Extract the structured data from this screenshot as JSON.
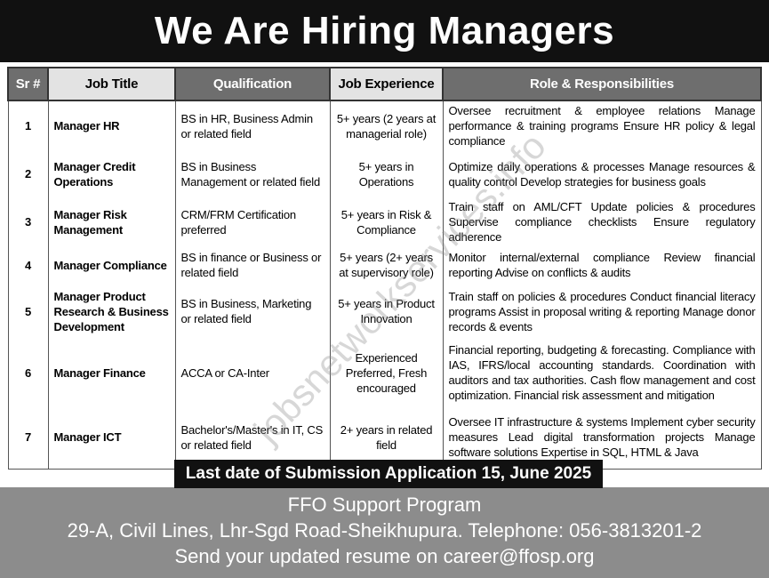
{
  "header": {
    "title": "We Are Hiring Managers"
  },
  "table": {
    "headers": [
      "Sr #",
      "Job Title",
      "Qualification",
      "Job Experience",
      "Role & Responsibilities"
    ],
    "rows": [
      [
        "1",
        "Manager HR",
        "BS in HR, Business Admin or related field",
        "5+ years (2 years at managerial role)",
        "Oversee recruitment & employee relations Manage performance & training programs Ensure HR policy & legal compliance"
      ],
      [
        "2",
        "Manager Credit Operations",
        "BS in Business Management or related field",
        "5+ years in Operations",
        "Optimize daily operations & processes Manage resources & quality control Develop strategies for business goals"
      ],
      [
        "3",
        "Manager Risk Management",
        "CRM/FRM Certification preferred",
        "5+ years in Risk & Compliance",
        "Train staff on AML/CFT Update policies & procedures Supervise compliance checklists Ensure regulatory adherence"
      ],
      [
        "4",
        "Manager Compliance",
        "BS in finance or Business or related field",
        "5+ years (2+ years at supervisory role)",
        "Monitor internal/external compliance Review financial reporting Advise on conflicts & audits"
      ],
      [
        "5",
        "Manager Product Research & Business Development",
        "BS in Business, Marketing or related field",
        "5+ years in Product Innovation",
        "Train staff on policies & procedures Conduct financial literacy programs Assist in proposal writing & reporting Manage donor records & events"
      ],
      [
        "6",
        "Manager Finance",
        "ACCA or CA-Inter",
        "Experienced Preferred, Fresh encouraged",
        "Financial reporting, budgeting & forecasting. Compliance with IAS, IFRS/local accounting standards. Coordination with auditors and tax authorities. Cash flow management and cost optimization. Financial risk assessment and mitigation"
      ],
      [
        "7",
        "Manager ICT",
        "Bachelor's/Master's in IT, CS or related field",
        "2+ years in related field",
        "Oversee IT infrastructure & systems Implement cyber security measures Lead digital transformation projects Manage software solutions Expertise in SQL, HTML & Java"
      ]
    ]
  },
  "deadline": "Last date of Submission Application 15, June 2025",
  "footer": {
    "lines": [
      "FFO Support Program",
      "29-A, Civil Lines, Lhr-Sgd Road-Sheikhupura. Telephone: 056-3813201-2",
      "Send your updated resume on career@ffosp.org"
    ]
  },
  "watermark": "jobsnetworkservices.info"
}
